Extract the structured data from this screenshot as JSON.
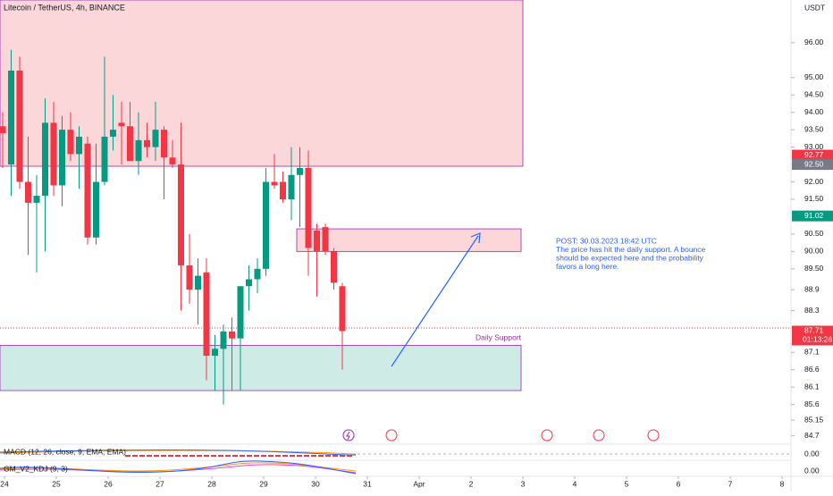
{
  "chart_data": {
    "type": "candlestick",
    "title": "Litecoin / TetherUS, 4h, BINANCE",
    "currency": "USDT",
    "ylim": [
      84.51,
      97.23
    ],
    "yticks": [
      {
        "value": 96,
        "label": "96.00"
      },
      {
        "value": 95,
        "label": "95.00"
      },
      {
        "value": 94.5,
        "label": "94.50"
      },
      {
        "value": 94,
        "label": "94.00"
      },
      {
        "value": 93.5,
        "label": "93.50"
      },
      {
        "value": 93,
        "label": "93.00"
      },
      {
        "value": 92,
        "label": "92.00"
      },
      {
        "value": 91.5,
        "label": "91.50"
      },
      {
        "value": 90.5,
        "label": "90.50"
      },
      {
        "value": 90,
        "label": "90.00"
      },
      {
        "value": 89.5,
        "label": "89.50"
      },
      88.9,
      88.3,
      87.1,
      86.6,
      86.1,
      85.6,
      85.15,
      84.7
    ],
    "xticks": [
      {
        "value": 0,
        "label": "24"
      },
      {
        "value": 1,
        "label": "25"
      },
      {
        "value": 2,
        "label": "26"
      },
      {
        "value": 3,
        "label": "27"
      },
      {
        "value": 4,
        "label": "28"
      },
      {
        "value": 5,
        "label": "29"
      },
      {
        "value": 6,
        "label": "30"
      },
      {
        "value": 7,
        "label": "31"
      },
      {
        "value": 8,
        "label": "Apr"
      },
      {
        "value": 9,
        "label": "2"
      },
      {
        "value": 10,
        "label": "3"
      },
      {
        "value": 11,
        "label": "4"
      },
      {
        "value": 12,
        "label": "5"
      },
      {
        "value": 13,
        "label": "6"
      },
      {
        "value": 14,
        "label": "7"
      },
      {
        "value": 15,
        "label": "8"
      }
    ],
    "up_color": "#089981",
    "down_color": "#f23645",
    "candles": [
      {
        "open": 93.6,
        "high": 94.0,
        "low": 92.4,
        "close": 93.4
      },
      {
        "open": 92.5,
        "high": 95.8,
        "low": 91.6,
        "close": 95.2
      },
      {
        "open": 95.2,
        "high": 95.6,
        "low": 91.8,
        "close": 92.0
      },
      {
        "open": 92.0,
        "high": 93.3,
        "low": 89.9,
        "close": 91.4
      },
      {
        "open": 91.4,
        "high": 92.2,
        "low": 89.4,
        "close": 91.6
      },
      {
        "open": 91.6,
        "high": 94.4,
        "low": 90.0,
        "close": 93.7
      },
      {
        "open": 93.7,
        "high": 94.3,
        "low": 91.6,
        "close": 91.9
      },
      {
        "open": 91.9,
        "high": 93.9,
        "low": 91.3,
        "close": 93.5
      },
      {
        "open": 93.5,
        "high": 94.0,
        "low": 92.6,
        "close": 92.8
      },
      {
        "open": 92.8,
        "high": 93.6,
        "low": 91.8,
        "close": 93.3
      },
      {
        "open": 93.1,
        "high": 93.3,
        "low": 90.2,
        "close": 90.4
      },
      {
        "open": 90.4,
        "high": 93.1,
        "low": 90.2,
        "close": 92.0
      },
      {
        "open": 92.0,
        "high": 95.6,
        "low": 91.9,
        "close": 93.3
      },
      {
        "open": 93.3,
        "high": 94.5,
        "low": 92.9,
        "close": 93.5
      },
      {
        "open": 93.7,
        "high": 94.3,
        "low": 92.5,
        "close": 93.6
      },
      {
        "open": 93.6,
        "high": 94.3,
        "low": 92.6,
        "close": 92.6
      },
      {
        "open": 92.6,
        "high": 94.0,
        "low": 92.2,
        "close": 93.2
      },
      {
        "open": 93.2,
        "high": 93.7,
        "low": 92.7,
        "close": 93.0
      },
      {
        "open": 93.0,
        "high": 94.3,
        "low": 92.6,
        "close": 93.5
      },
      {
        "open": 93.5,
        "high": 93.6,
        "low": 91.5,
        "close": 92.7
      },
      {
        "open": 92.7,
        "high": 93.2,
        "low": 92.4,
        "close": 92.5
      },
      {
        "open": 92.5,
        "high": 93.7,
        "low": 88.3,
        "close": 89.6
      },
      {
        "open": 89.6,
        "high": 90.5,
        "low": 88.5,
        "close": 88.9
      },
      {
        "open": 88.9,
        "high": 89.8,
        "low": 87.9,
        "close": 89.3
      },
      {
        "open": 89.4,
        "high": 89.8,
        "low": 86.3,
        "close": 87.0
      },
      {
        "open": 87.0,
        "high": 87.6,
        "low": 86.0,
        "close": 87.2
      },
      {
        "open": 87.2,
        "high": 87.9,
        "low": 85.6,
        "close": 87.7
      },
      {
        "open": 87.7,
        "high": 88.1,
        "low": 86.0,
        "close": 87.5
      },
      {
        "open": 87.5,
        "high": 89.0,
        "low": 86.0,
        "close": 89.0
      },
      {
        "open": 89.0,
        "high": 89.6,
        "low": 88.3,
        "close": 89.2
      },
      {
        "open": 89.2,
        "high": 89.8,
        "low": 88.8,
        "close": 89.5
      },
      {
        "open": 89.5,
        "high": 92.4,
        "low": 89.3,
        "close": 92.0
      },
      {
        "open": 92.0,
        "high": 92.8,
        "low": 91.8,
        "close": 91.9
      },
      {
        "open": 92.0,
        "high": 92.3,
        "low": 91.4,
        "close": 91.5
      },
      {
        "open": 91.5,
        "high": 93.0,
        "low": 90.9,
        "close": 92.2
      },
      {
        "open": 92.2,
        "high": 93.0,
        "low": 90.7,
        "close": 92.4
      },
      {
        "open": 92.4,
        "high": 92.9,
        "low": 89.3,
        "close": 90.1
      },
      {
        "open": 90.6,
        "high": 90.8,
        "low": 88.7,
        "close": 90.0
      },
      {
        "open": 90.7,
        "high": 90.8,
        "low": 89.9,
        "close": 90.0
      },
      {
        "open": 90.0,
        "high": 90.1,
        "low": 88.9,
        "close": 89.1
      },
      {
        "open": 89.0,
        "high": 89.1,
        "low": 86.6,
        "close": 87.71
      }
    ],
    "zones": [
      {
        "low": 92.45,
        "high": 97.23,
        "color": "rgba(242,54,69,0.2)",
        "start": 0,
        "end": 585
      },
      {
        "low": 90.0,
        "high": 90.65,
        "color": "rgba(242,54,69,0.2)",
        "start": 332,
        "end": 583
      },
      {
        "low": 86.0,
        "high": 87.3,
        "color": "rgba(8,153,129,0.2)",
        "start": 0,
        "end": 583
      }
    ],
    "support_label": "Daily Support",
    "post_lines": [
      "POST: 30.03.2023 18:42 UTC",
      "The price has hit the daily support. A bounce",
      "should be expected here and the probability",
      "favors a long here."
    ],
    "price_tags": [
      {
        "value": 92.77,
        "color": "#f23645"
      },
      {
        "value": 92.5,
        "label": "92.50",
        "color": "#787b86"
      },
      {
        "value": 91.02,
        "color": "#089981"
      },
      {
        "value": 87.71,
        "color": "#f23645"
      }
    ],
    "countdown": "01:13:26",
    "indicators": [
      {
        "name": "MACD (12, 26, close, 9, EMA, EMA)",
        "value_label": "0.00"
      },
      {
        "name": "GM_V2_KDJ (9, 3)",
        "value_label": "0.00"
      }
    ]
  }
}
